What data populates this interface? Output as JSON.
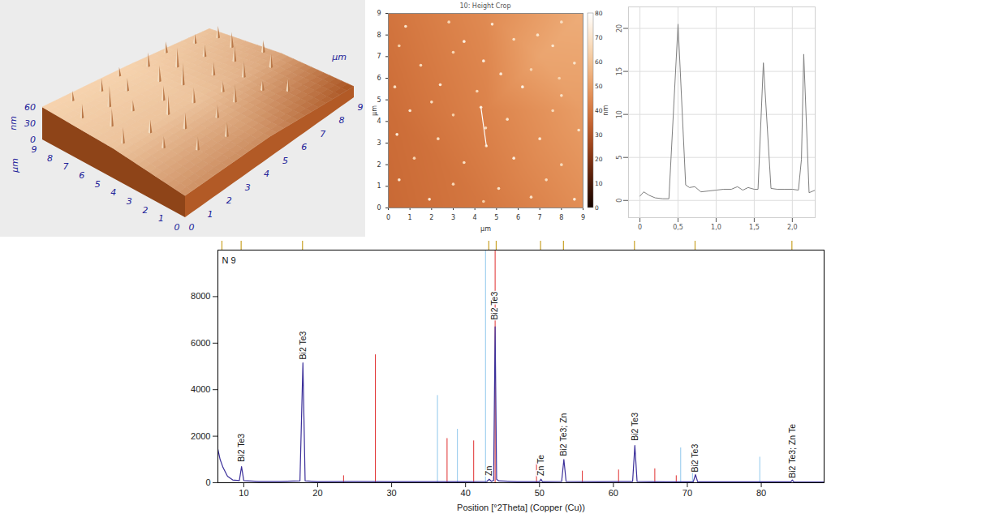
{
  "chart_data": [
    {
      "type": "surface3d",
      "xlabel": "µm",
      "ylabel": "µm",
      "zlabel": "nm",
      "xlim": [
        0,
        9
      ],
      "ylim": [
        0,
        9
      ],
      "xticks": [
        0,
        1,
        2,
        3,
        4,
        5,
        6,
        7,
        8,
        9
      ],
      "yticks": [
        0,
        1,
        2,
        3,
        4,
        5,
        6,
        7,
        8,
        9
      ],
      "zticks": [
        0,
        30,
        60
      ],
      "surface": {
        "x": [
          0,
          4.5,
          9
        ],
        "y": [
          0,
          4.5,
          9
        ],
        "z": [
          [
            40,
            55,
            60
          ],
          [
            38,
            55,
            60
          ],
          [
            20,
            45,
            55
          ]
        ]
      },
      "spikes": {
        "x": [
          1.2,
          2.5,
          3.8,
          5.1,
          6.4,
          7.7,
          8.6,
          0.6,
          1.9,
          3.2,
          4.5,
          5.8,
          7.1,
          8.3,
          1.0,
          2.3,
          3.6,
          4.9,
          6.2,
          7.5,
          8.7,
          0.5,
          1.7,
          3.0,
          4.2,
          5.5,
          6.8,
          8.0,
          1.4,
          2.8,
          4.1,
          5.3,
          6.6,
          2.2,
          3.5,
          7.2
        ],
        "y": [
          8.5,
          8.2,
          8.6,
          8.3,
          8.7,
          8.4,
          8.0,
          7.2,
          7.0,
          7.4,
          6.9,
          7.3,
          7.1,
          6.8,
          5.8,
          6.0,
          5.6,
          5.9,
          5.5,
          5.7,
          5.3,
          4.5,
          4.2,
          4.6,
          4.4,
          4.1,
          4.3,
          4.0,
          3.0,
          3.3,
          2.8,
          3.1,
          2.9,
          1.8,
          1.5,
          2.0
        ],
        "height": [
          18,
          24,
          16,
          26,
          20,
          17,
          22,
          26,
          38,
          24,
          30,
          36,
          22,
          28,
          34,
          20,
          27,
          40,
          25,
          31,
          22,
          30,
          24,
          36,
          28,
          20,
          32,
          26,
          22,
          30,
          25,
          34,
          20,
          26,
          30,
          22
        ]
      }
    },
    {
      "type": "heatmap",
      "title": "10: Height Crop",
      "xlabel": "µm",
      "ylabel": "µm",
      "xlim": [
        0,
        9
      ],
      "ylim": [
        0,
        9
      ],
      "xticks": [
        0,
        1,
        2,
        3,
        4,
        5,
        6,
        7,
        8,
        9
      ],
      "yticks": [
        0,
        1,
        2,
        3,
        4,
        5,
        6,
        7,
        8,
        9
      ],
      "background": {
        "x": [
          0,
          4.5,
          9,
          0,
          4.5,
          9,
          0,
          4.5,
          9,
          7
        ],
        "y": [
          0,
          0,
          0,
          4.5,
          4.5,
          4.5,
          9,
          9,
          9,
          7
        ],
        "height": [
          36,
          40,
          46,
          37,
          43,
          50,
          39,
          45,
          54,
          52
        ]
      },
      "spots": {
        "x": [
          0.8,
          2.8,
          4.8,
          8.0,
          0.5,
          3.5,
          5.8,
          7.6,
          1.5,
          4.4,
          6.6,
          8.6,
          0.3,
          2.4,
          4.1,
          6.2,
          8.0,
          1.0,
          3.0,
          5.5,
          7.6,
          0.4,
          2.3,
          4.5,
          7.0,
          8.8,
          1.2,
          3.5,
          5.8,
          8.0,
          0.5,
          3.0,
          5.1,
          7.3,
          1.9,
          4.4,
          6.6,
          8.6,
          4.28,
          4.53,
          3.0,
          6.9,
          2.0,
          5.2,
          7.9
        ],
        "y": [
          8.4,
          8.6,
          8.5,
          8.6,
          7.5,
          7.7,
          7.8,
          7.5,
          6.6,
          6.8,
          6.4,
          6.7,
          5.6,
          5.7,
          5.4,
          5.6,
          5.2,
          4.5,
          4.3,
          4.1,
          4.5,
          3.4,
          3.2,
          3.7,
          3.2,
          3.6,
          2.3,
          2.1,
          2.3,
          2.0,
          1.3,
          1.1,
          0.9,
          1.3,
          0.4,
          0.3,
          0.5,
          0.4,
          4.66,
          2.87,
          7.2,
          8.0,
          4.9,
          6.2,
          6.0
        ],
        "height": [
          70,
          66,
          72,
          68,
          64,
          74,
          69,
          71,
          67,
          73,
          65,
          70,
          68,
          72,
          66,
          75,
          69,
          71,
          64,
          70,
          67,
          73,
          68,
          66,
          72,
          70,
          65,
          69,
          74,
          67,
          71,
          66,
          70,
          68,
          72,
          64,
          69,
          73,
          71,
          67,
          66,
          70,
          68,
          72,
          65
        ]
      },
      "profile_line": {
        "x": [
          4.28,
          4.53
        ],
        "y": [
          4.66,
          2.87
        ]
      },
      "colorbar": {
        "label": "nm",
        "range": [
          0,
          80
        ],
        "ticks": [
          0,
          10,
          20,
          30,
          40,
          50,
          60,
          70,
          80
        ]
      }
    },
    {
      "type": "line",
      "xlim": [
        -0.15,
        2.3
      ],
      "ylim": [
        -2,
        22.5
      ],
      "xticks": [
        0,
        {
          "value": 0.5,
          "label": "0,5"
        },
        {
          "value": 1.0,
          "label": "1,0"
        },
        {
          "value": 1.5,
          "label": "1,5"
        },
        {
          "value": 2.0,
          "label": "2,0"
        }
      ],
      "yticks": [
        0,
        5,
        10,
        15,
        20
      ],
      "grid": true,
      "color": "#7f7f7f",
      "x": [
        0,
        0.05,
        0.12,
        0.2,
        0.3,
        0.38,
        0.5,
        0.6,
        0.65,
        0.72,
        0.8,
        0.9,
        1.0,
        1.1,
        1.2,
        1.28,
        1.35,
        1.42,
        1.5,
        1.55,
        1.62,
        1.72,
        1.8,
        1.9,
        2.0,
        2.08,
        2.12,
        2.15,
        2.22,
        2.3
      ],
      "values": [
        0.5,
        1.0,
        0.6,
        0.3,
        0.2,
        0.2,
        20.5,
        1.8,
        1.5,
        1.6,
        1.0,
        1.1,
        1.2,
        1.3,
        1.3,
        1.6,
        1.2,
        1.5,
        1.3,
        1.3,
        16.0,
        1.4,
        1.3,
        1.3,
        1.3,
        1.2,
        4.8,
        17.0,
        0.9,
        1.2
      ]
    },
    {
      "type": "line",
      "title": "N 9",
      "xlabel": "Position [°2Theta] (Copper (Cu))",
      "xlim": [
        6.5,
        88.5
      ],
      "ylim": [
        0,
        10000
      ],
      "xticks": [
        10,
        20,
        30,
        40,
        50,
        60,
        70,
        80
      ],
      "yticks": [
        0,
        2000,
        4000,
        6000,
        8000
      ],
      "series": [
        {
          "type": "stick",
          "color": "#e03030",
          "x": [
            23.5,
            27.8,
            37.5,
            41.1,
            44.0,
            49.6,
            55.8,
            60.7,
            65.6,
            68.5
          ],
          "values": [
            300,
            5500,
            1900,
            1800,
            9960,
            900,
            500,
            550,
            600,
            300
          ]
        },
        {
          "type": "stick",
          "color": "#90c8ec",
          "x": [
            36.2,
            38.9,
            42.7,
            69.1,
            70.7,
            79.8
          ],
          "values": [
            3750,
            2300,
            9960,
            1500,
            1000,
            1100
          ]
        },
        {
          "type": "line",
          "color": "#3b2f9a",
          "x": [
            6.5,
            6.8,
            7.2,
            7.8,
            8.5,
            9.4,
            9.7,
            10.0,
            12,
            15,
            17.6,
            18.0,
            18.3,
            20,
            25,
            30,
            35,
            40,
            42.9,
            43.2,
            43.5,
            43.8,
            44.0,
            44.2,
            44.5,
            47,
            50.0,
            50.2,
            50.4,
            53.0,
            53.3,
            53.6,
            58,
            62.6,
            62.9,
            63.2,
            67,
            70.8,
            71.1,
            71.4,
            75,
            80,
            84.0,
            84.2,
            84.4,
            88.5
          ],
          "values": [
            1440,
            1000,
            650,
            280,
            120,
            90,
            690,
            90,
            60,
            60,
            80,
            5150,
            80,
            50,
            60,
            50,
            50,
            50,
            60,
            150,
            60,
            100,
            6700,
            150,
            80,
            50,
            50,
            150,
            50,
            60,
            1000,
            60,
            50,
            60,
            1600,
            60,
            40,
            40,
            350,
            40,
            40,
            40,
            40,
            120,
            40,
            30
          ]
        }
      ],
      "annotations": [
        {
          "x": 9.7,
          "y": 900,
          "text": "Bi2 Te3"
        },
        {
          "x": 18.0,
          "y": 5300,
          "text": "Bi2 Te3"
        },
        {
          "x": 44.0,
          "y": 7000,
          "text": "Bi2 Te3"
        },
        {
          "x": 43.2,
          "y": 300,
          "text": "Zn"
        },
        {
          "x": 50.2,
          "y": 300,
          "text": "Zn Te"
        },
        {
          "x": 53.3,
          "y": 1150,
          "text": "Bi2 Te3; Zn"
        },
        {
          "x": 62.9,
          "y": 1800,
          "text": "Bi2 Te3"
        },
        {
          "x": 71.1,
          "y": 450,
          "text": "Bi2 Te3"
        },
        {
          "x": 84.2,
          "y": 200,
          "text": "Bi2 Te3; Zn Te"
        }
      ],
      "peak_markers": [
        7.1,
        9.7,
        18.0,
        43.2,
        44.2,
        50.2,
        53.3,
        62.9,
        71.1,
        84.2
      ]
    }
  ]
}
